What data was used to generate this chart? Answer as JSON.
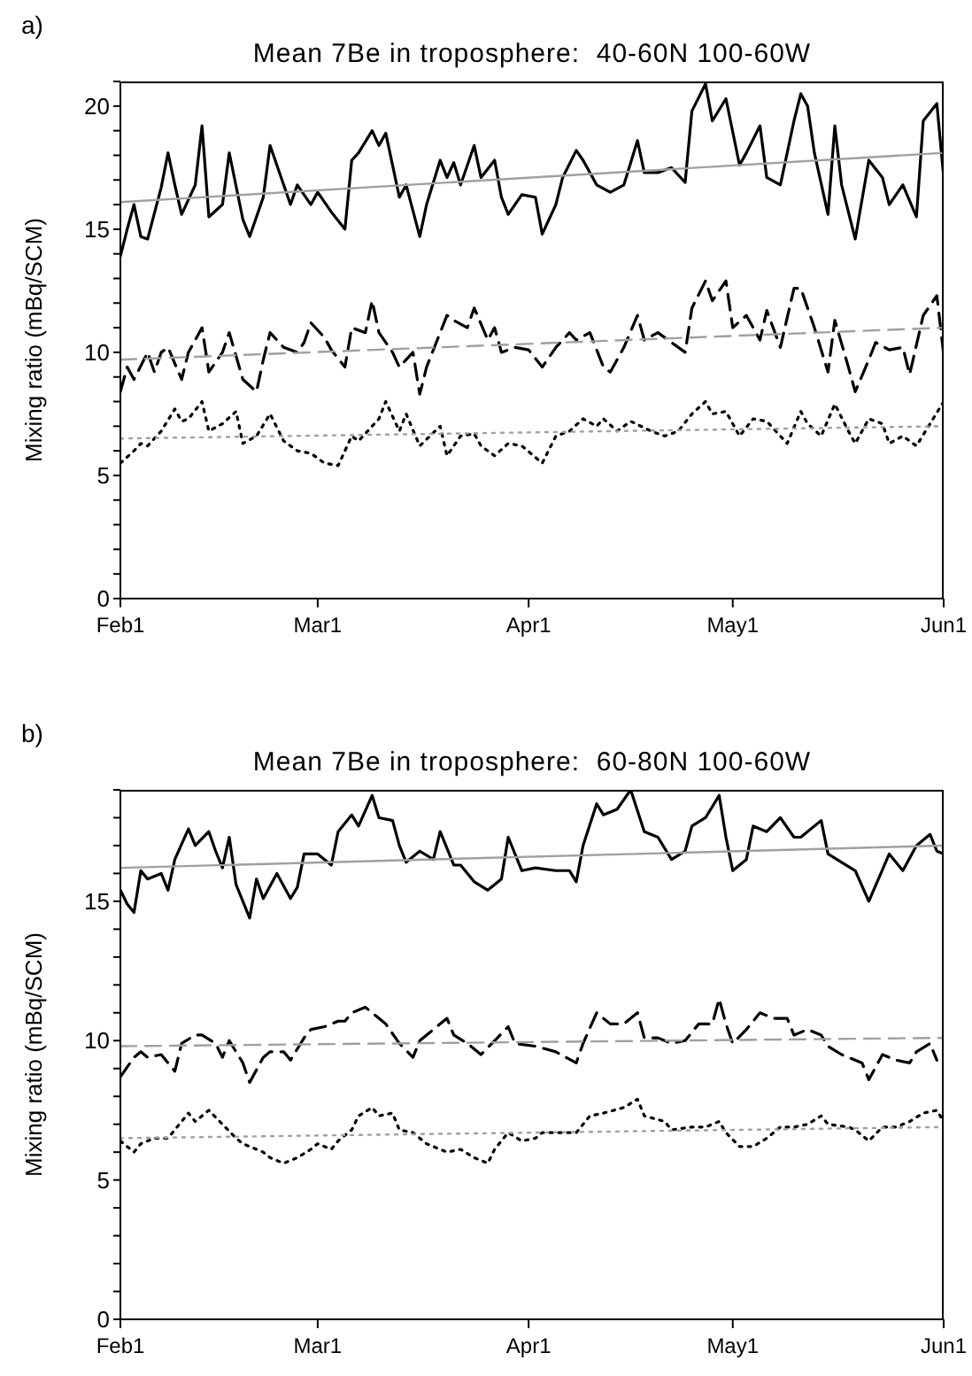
{
  "chart_data": [
    {
      "type": "line",
      "title": "Mean 7Be in troposphere:  40-60N 100-60W",
      "ylabel": "Mixing ratio (mBq/SCM)",
      "annotations": [
        "a)"
      ],
      "xlim": [
        "--02-01",
        "--06-01"
      ],
      "xticks": [
        {
          "value": "--02-01",
          "label": "Feb1"
        },
        {
          "value": "--03-01",
          "label": "Mar1"
        },
        {
          "value": "--04-01",
          "label": "Apr1"
        },
        {
          "value": "--05-01",
          "label": "May1"
        },
        {
          "value": "--06-01",
          "label": "Jun1"
        }
      ],
      "ylim": [
        0,
        21
      ],
      "yticks": [
        0,
        {
          "value": 1,
          "label": null
        },
        {
          "value": 2,
          "label": null
        },
        {
          "value": 3,
          "label": null
        },
        {
          "value": 4,
          "label": null
        },
        5,
        {
          "value": 6,
          "label": null
        },
        {
          "value": 7,
          "label": null
        },
        {
          "value": 8,
          "label": null
        },
        {
          "value": 9,
          "label": null
        },
        10,
        {
          "value": 11,
          "label": null
        },
        {
          "value": 12,
          "label": null
        },
        {
          "value": 13,
          "label": null
        },
        {
          "value": 14,
          "label": null
        },
        15,
        {
          "value": 16,
          "label": null
        },
        {
          "value": 17,
          "label": null
        },
        {
          "value": 18,
          "label": null
        },
        {
          "value": 19,
          "label": null
        },
        20,
        {
          "value": 21,
          "label": null
        }
      ],
      "series": [
        {
          "color": "#000000",
          "line_style": "solid",
          "x": [
            "--02-01",
            "--02-02",
            "--02-03",
            "--02-04",
            "--02-05",
            "--02-07",
            "--02-08",
            "--02-09",
            "--02-10",
            "--02-12",
            "--02-13",
            "--02-14",
            "--02-16",
            "--02-17",
            "--02-19",
            "--02-20",
            "--02-22",
            "--02-23",
            "--02-25",
            "--02-26",
            "--02-27",
            "--02-29",
            "--03-01",
            "--03-03",
            "--03-05",
            "--03-06",
            "--03-07",
            "--03-09",
            "--03-10",
            "--03-11",
            "--03-13",
            "--03-14",
            "--03-16",
            "--03-17",
            "--03-19",
            "--03-20",
            "--03-21",
            "--03-22",
            "--03-24",
            "--03-25",
            "--03-27",
            "--03-28",
            "--03-29",
            "--03-31",
            "--04-02",
            "--04-03",
            "--04-05",
            "--04-06",
            "--04-08",
            "--04-09",
            "--04-11",
            "--04-13",
            "--04-15",
            "--04-17",
            "--04-18",
            "--04-20",
            "--04-22",
            "--04-24",
            "--04-25",
            "--04-27",
            "--04-28",
            "--04-30",
            "--05-02",
            "--05-03",
            "--05-05",
            "--05-06",
            "--05-08",
            "--05-10",
            "--05-11",
            "--05-12",
            "--05-13",
            "--05-15",
            "--05-16",
            "--05-17",
            "--05-19",
            "--05-21",
            "--05-23",
            "--05-24",
            "--05-26",
            "--05-28",
            "--05-29",
            "--05-31",
            "--06-01"
          ],
          "values": [
            13.9,
            15.0,
            16.0,
            14.7,
            14.6,
            16.7,
            18.1,
            16.8,
            15.6,
            16.8,
            19.2,
            15.5,
            16.0,
            18.1,
            15.4,
            14.7,
            16.3,
            18.4,
            16.8,
            16.0,
            16.8,
            16.0,
            16.5,
            15.7,
            15.0,
            17.8,
            18.1,
            19.0,
            18.4,
            18.9,
            16.3,
            16.8,
            14.7,
            16.0,
            17.8,
            17.1,
            17.7,
            16.8,
            18.4,
            17.1,
            17.8,
            16.3,
            15.6,
            16.4,
            16.3,
            14.8,
            16.0,
            17.1,
            18.2,
            17.8,
            16.8,
            16.5,
            16.8,
            18.6,
            17.3,
            17.3,
            17.5,
            16.9,
            19.8,
            20.9,
            19.4,
            20.3,
            17.6,
            18.1,
            19.2,
            17.1,
            16.8,
            19.4,
            20.5,
            20.0,
            18.1,
            15.6,
            19.2,
            16.8,
            14.6,
            17.8,
            17.1,
            16.0,
            16.8,
            15.5,
            19.4,
            20.1,
            17.1
          ]
        },
        {
          "color": "#000000",
          "line_style": "dashed",
          "x": [
            "--02-01",
            "--02-02",
            "--02-03",
            "--02-05",
            "--02-06",
            "--02-07",
            "--02-08",
            "--02-10",
            "--02-11",
            "--02-13",
            "--02-14",
            "--02-16",
            "--02-17",
            "--02-19",
            "--02-21",
            "--02-22",
            "--02-23",
            "--02-25",
            "--02-27",
            "--02-28",
            "--02-29",
            "--03-02",
            "--03-03",
            "--03-05",
            "--03-06",
            "--03-08",
            "--03-09",
            "--03-10",
            "--03-12",
            "--03-13",
            "--03-15",
            "--03-16",
            "--03-17",
            "--03-19",
            "--03-20",
            "--03-21",
            "--03-23",
            "--03-24",
            "--03-26",
            "--03-27",
            "--03-28",
            "--03-30",
            "--04-01",
            "--04-03",
            "--04-05",
            "--04-07",
            "--04-08",
            "--04-10",
            "--04-12",
            "--04-13",
            "--04-15",
            "--04-17",
            "--04-18",
            "--04-20",
            "--04-22",
            "--04-24",
            "--04-25",
            "--04-27",
            "--04-28",
            "--04-30",
            "--05-01",
            "--05-03",
            "--05-05",
            "--05-06",
            "--05-08",
            "--05-10",
            "--05-11",
            "--05-13",
            "--05-15",
            "--05-16",
            "--05-18",
            "--05-19",
            "--05-21",
            "--05-22",
            "--05-24",
            "--05-26",
            "--05-27",
            "--05-29",
            "--05-31",
            "--06-01"
          ],
          "values": [
            8.4,
            9.4,
            8.9,
            10.0,
            9.2,
            10.0,
            10.2,
            8.9,
            10.0,
            11.0,
            9.2,
            10.0,
            10.8,
            8.9,
            8.4,
            9.7,
            10.8,
            10.2,
            10.0,
            10.4,
            11.2,
            10.6,
            10.1,
            9.4,
            11.0,
            10.8,
            12.1,
            10.8,
            10.0,
            9.4,
            10.0,
            8.3,
            9.4,
            10.8,
            11.5,
            11.3,
            11.0,
            11.8,
            10.5,
            11.0,
            10.0,
            10.2,
            10.1,
            9.4,
            10.2,
            10.8,
            10.5,
            10.8,
            9.4,
            9.2,
            10.2,
            11.5,
            10.5,
            10.8,
            10.4,
            10.0,
            11.8,
            12.9,
            12.1,
            12.9,
            11.0,
            11.5,
            10.5,
            11.7,
            10.2,
            12.6,
            12.6,
            11.0,
            9.2,
            11.3,
            9.4,
            8.4,
            9.7,
            10.4,
            10.1,
            10.2,
            9.1,
            11.5,
            12.3,
            9.9
          ]
        },
        {
          "color": "#000000",
          "line_style": "dotted",
          "x": [
            "--02-01",
            "--02-03",
            "--02-04",
            "--02-05",
            "--02-07",
            "--02-09",
            "--02-10",
            "--02-11",
            "--02-13",
            "--02-14",
            "--02-16",
            "--02-18",
            "--02-19",
            "--02-21",
            "--02-23",
            "--02-25",
            "--02-27",
            "--02-29",
            "--03-02",
            "--03-04",
            "--03-06",
            "--03-07",
            "--03-10",
            "--03-11",
            "--03-13",
            "--03-14",
            "--03-16",
            "--03-19",
            "--03-20",
            "--03-22",
            "--03-24",
            "--03-25",
            "--03-27",
            "--03-29",
            "--03-31",
            "--04-03",
            "--04-05",
            "--04-07",
            "--04-09",
            "--04-11",
            "--04-12",
            "--04-14",
            "--04-16",
            "--04-19",
            "--04-21",
            "--04-23",
            "--04-25",
            "--04-27",
            "--04-28",
            "--04-30",
            "--05-02",
            "--05-04",
            "--05-06",
            "--05-09",
            "--05-11",
            "--05-12",
            "--05-14",
            "--05-16",
            "--05-18",
            "--05-19",
            "--05-21",
            "--05-23",
            "--05-24",
            "--05-26",
            "--05-28",
            "--05-30",
            "--06-01"
          ],
          "values": [
            5.5,
            6.0,
            6.3,
            6.2,
            6.8,
            7.7,
            7.2,
            7.3,
            8.0,
            6.8,
            7.1,
            7.6,
            6.3,
            6.6,
            7.5,
            6.4,
            6.0,
            5.9,
            5.5,
            5.4,
            6.6,
            6.4,
            7.3,
            8.0,
            6.8,
            7.5,
            6.2,
            7.0,
            5.8,
            6.6,
            6.7,
            6.2,
            5.8,
            6.3,
            6.2,
            5.5,
            6.6,
            6.8,
            7.3,
            7.0,
            7.3,
            6.8,
            7.2,
            6.8,
            6.6,
            6.8,
            7.5,
            8.0,
            7.5,
            7.6,
            6.6,
            7.3,
            7.2,
            6.3,
            7.6,
            7.1,
            6.6,
            7.9,
            6.8,
            6.3,
            7.3,
            7.1,
            6.3,
            6.6,
            6.2,
            7.1,
            8.0
          ]
        },
        {
          "color": "#a0a0a0",
          "line_style": "solid",
          "x": [
            "--02-01",
            "--06-01"
          ],
          "values": [
            16.1,
            18.1
          ]
        },
        {
          "color": "#a0a0a0",
          "line_style": "dashed",
          "x": [
            "--02-01",
            "--06-01"
          ],
          "values": [
            9.7,
            11.0
          ]
        },
        {
          "color": "#a0a0a0",
          "line_style": "dotted",
          "x": [
            "--02-01",
            "--06-01"
          ],
          "values": [
            6.5,
            7.0
          ]
        }
      ]
    },
    {
      "type": "line",
      "title": "Mean 7Be in troposphere:  60-80N 100-60W",
      "ylabel": "Mixing ratio (mBq/SCM)",
      "annotations": [
        "b)"
      ],
      "xlim": [
        "--02-01",
        "--06-01"
      ],
      "xticks": [
        {
          "value": "--02-01",
          "label": "Feb1"
        },
        {
          "value": "--03-01",
          "label": "Mar1"
        },
        {
          "value": "--04-01",
          "label": "Apr1"
        },
        {
          "value": "--05-01",
          "label": "May1"
        },
        {
          "value": "--06-01",
          "label": "Jun1"
        }
      ],
      "ylim": [
        0,
        19
      ],
      "yticks": [
        0,
        {
          "value": 1,
          "label": null
        },
        {
          "value": 2,
          "label": null
        },
        {
          "value": 3,
          "label": null
        },
        {
          "value": 4,
          "label": null
        },
        5,
        {
          "value": 6,
          "label": null
        },
        {
          "value": 7,
          "label": null
        },
        {
          "value": 8,
          "label": null
        },
        {
          "value": 9,
          "label": null
        },
        10,
        {
          "value": 11,
          "label": null
        },
        {
          "value": 12,
          "label": null
        },
        {
          "value": 13,
          "label": null
        },
        {
          "value": 14,
          "label": null
        },
        15,
        {
          "value": 16,
          "label": null
        },
        {
          "value": 17,
          "label": null
        },
        {
          "value": 18,
          "label": null
        },
        {
          "value": 19,
          "label": null
        }
      ],
      "series": [
        {
          "color": "#000000",
          "line_style": "solid",
          "x": [
            "--02-01",
            "--02-02",
            "--02-03",
            "--02-04",
            "--02-05",
            "--02-07",
            "--02-08",
            "--02-09",
            "--02-11",
            "--02-12",
            "--02-14",
            "--02-15",
            "--02-16",
            "--02-17",
            "--02-18",
            "--02-20",
            "--02-21",
            "--02-22",
            "--02-24",
            "--02-26",
            "--02-27",
            "--02-28",
            "--03-01",
            "--03-03",
            "--03-04",
            "--03-06",
            "--03-07",
            "--03-09",
            "--03-10",
            "--03-12",
            "--03-13",
            "--03-14",
            "--03-16",
            "--03-18",
            "--03-19",
            "--03-21",
            "--03-22",
            "--03-24",
            "--03-26",
            "--03-27",
            "--03-28",
            "--03-29",
            "--03-31",
            "--04-02",
            "--04-05",
            "--04-07",
            "--04-08",
            "--04-09",
            "--04-11",
            "--04-12",
            "--04-14",
            "--04-16",
            "--04-18",
            "--04-20",
            "--04-22",
            "--04-24",
            "--04-25",
            "--04-27",
            "--04-29",
            "--04-30",
            "--05-01",
            "--05-03",
            "--05-04",
            "--05-06",
            "--05-08",
            "--05-10",
            "--05-11",
            "--05-14",
            "--05-15",
            "--05-17",
            "--05-19",
            "--05-21",
            "--05-24",
            "--05-26",
            "--05-28",
            "--05-30",
            "--05-31",
            "--06-01"
          ],
          "values": [
            15.4,
            14.9,
            14.6,
            16.1,
            15.8,
            16.0,
            15.4,
            16.5,
            17.6,
            17.0,
            17.5,
            16.8,
            16.2,
            17.3,
            15.6,
            14.4,
            15.8,
            15.1,
            16.0,
            15.1,
            15.5,
            16.7,
            16.7,
            16.3,
            17.5,
            18.1,
            17.7,
            18.8,
            18.0,
            17.9,
            17.0,
            16.4,
            16.8,
            16.5,
            17.5,
            16.3,
            16.3,
            15.7,
            15.4,
            15.6,
            15.8,
            17.3,
            16.1,
            16.2,
            16.1,
            16.1,
            15.7,
            17.0,
            18.5,
            18.1,
            18.3,
            19.0,
            17.5,
            17.3,
            16.5,
            16.8,
            17.7,
            18.0,
            18.8,
            17.3,
            16.1,
            16.5,
            17.7,
            17.5,
            18.0,
            17.3,
            17.3,
            17.9,
            16.7,
            16.4,
            16.1,
            15.0,
            16.7,
            16.1,
            17.0,
            17.4,
            16.8,
            16.7
          ]
        },
        {
          "color": "#000000",
          "line_style": "dashed",
          "x": [
            "--02-01",
            "--02-03",
            "--02-04",
            "--02-05",
            "--02-07",
            "--02-09",
            "--02-10",
            "--02-12",
            "--02-13",
            "--02-15",
            "--02-16",
            "--02-17",
            "--02-19",
            "--02-20",
            "--02-22",
            "--02-23",
            "--02-25",
            "--02-26",
            "--02-28",
            "--02-29",
            "--03-02",
            "--03-04",
            "--03-05",
            "--03-06",
            "--03-08",
            "--03-10",
            "--03-11",
            "--03-13",
            "--03-15",
            "--03-16",
            "--03-18",
            "--03-20",
            "--03-21",
            "--03-23",
            "--03-25",
            "--03-27",
            "--03-29",
            "--03-30",
            "--04-02",
            "--04-05",
            "--04-08",
            "--04-09",
            "--04-11",
            "--04-13",
            "--04-15",
            "--04-17",
            "--04-18",
            "--04-20",
            "--04-22",
            "--04-24",
            "--04-26",
            "--04-28",
            "--04-29",
            "--04-30",
            "--05-01",
            "--05-03",
            "--05-05",
            "--05-07",
            "--05-09",
            "--05-10",
            "--05-12",
            "--05-14",
            "--05-15",
            "--05-17",
            "--05-20",
            "--05-21",
            "--05-23",
            "--05-25",
            "--05-27",
            "--05-28",
            "--05-30",
            "--05-31"
          ],
          "values": [
            8.7,
            9.4,
            9.6,
            9.4,
            9.5,
            8.9,
            9.9,
            10.2,
            10.2,
            9.9,
            9.4,
            10.0,
            9.2,
            8.5,
            9.4,
            9.6,
            9.6,
            9.3,
            10.1,
            10.4,
            10.5,
            10.7,
            10.7,
            11.0,
            11.2,
            10.8,
            10.6,
            9.9,
            9.4,
            10.0,
            10.4,
            10.8,
            10.2,
            9.9,
            9.5,
            10.0,
            10.5,
            9.9,
            9.8,
            9.6,
            9.2,
            9.9,
            11.0,
            10.6,
            10.6,
            11.0,
            10.1,
            10.1,
            9.9,
            10.0,
            10.6,
            10.6,
            11.5,
            10.6,
            9.9,
            10.4,
            11.0,
            10.8,
            10.8,
            10.2,
            10.4,
            10.2,
            9.8,
            9.5,
            9.2,
            8.6,
            9.5,
            9.3,
            9.2,
            9.6,
            9.9,
            9.3
          ]
        },
        {
          "color": "#000000",
          "line_style": "dotted",
          "x": [
            "--02-01",
            "--02-03",
            "--02-04",
            "--02-06",
            "--02-08",
            "--02-09",
            "--02-11",
            "--02-12",
            "--02-14",
            "--02-16",
            "--02-18",
            "--02-19",
            "--02-22",
            "--02-23",
            "--02-25",
            "--02-27",
            "--02-29",
            "--03-01",
            "--03-03",
            "--03-04",
            "--03-06",
            "--03-07",
            "--03-09",
            "--03-10",
            "--03-12",
            "--03-13",
            "--03-15",
            "--03-17",
            "--03-19",
            "--03-20",
            "--03-22",
            "--03-24",
            "--03-26",
            "--03-27",
            "--03-29",
            "--03-31",
            "--04-02",
            "--04-03",
            "--04-06",
            "--04-08",
            "--04-10",
            "--04-12",
            "--04-15",
            "--04-17",
            "--04-18",
            "--04-21",
            "--04-22",
            "--04-25",
            "--04-27",
            "--04-29",
            "--04-30",
            "--05-02",
            "--05-04",
            "--05-06",
            "--05-08",
            "--05-10",
            "--05-12",
            "--05-14",
            "--05-15",
            "--05-18",
            "--05-19",
            "--05-21",
            "--05-23",
            "--05-25",
            "--05-27",
            "--05-29",
            "--05-31",
            "--06-01"
          ],
          "values": [
            6.4,
            6.0,
            6.3,
            6.5,
            6.5,
            6.8,
            7.4,
            7.1,
            7.5,
            7.0,
            6.5,
            6.3,
            6.0,
            5.8,
            5.6,
            5.8,
            6.1,
            6.3,
            6.1,
            6.4,
            6.8,
            7.3,
            7.6,
            7.3,
            7.4,
            6.8,
            6.7,
            6.3,
            6.1,
            6.0,
            6.1,
            5.8,
            5.6,
            6.1,
            6.7,
            6.4,
            6.5,
            6.7,
            6.7,
            6.7,
            7.3,
            7.4,
            7.6,
            7.9,
            7.3,
            7.1,
            6.8,
            6.9,
            6.9,
            7.1,
            6.7,
            6.2,
            6.2,
            6.5,
            6.9,
            6.9,
            7.0,
            7.3,
            7.0,
            6.9,
            6.8,
            6.4,
            6.9,
            6.9,
            7.1,
            7.4,
            7.5,
            7.1
          ]
        },
        {
          "color": "#a0a0a0",
          "line_style": "solid",
          "x": [
            "--02-01",
            "--06-01"
          ],
          "values": [
            16.2,
            17.0
          ]
        },
        {
          "color": "#a0a0a0",
          "line_style": "dashed",
          "x": [
            "--02-01",
            "--06-01"
          ],
          "values": [
            9.8,
            10.1
          ]
        },
        {
          "color": "#a0a0a0",
          "line_style": "dotted",
          "x": [
            "--02-01",
            "--06-01"
          ],
          "values": [
            6.5,
            6.9
          ]
        }
      ]
    }
  ]
}
